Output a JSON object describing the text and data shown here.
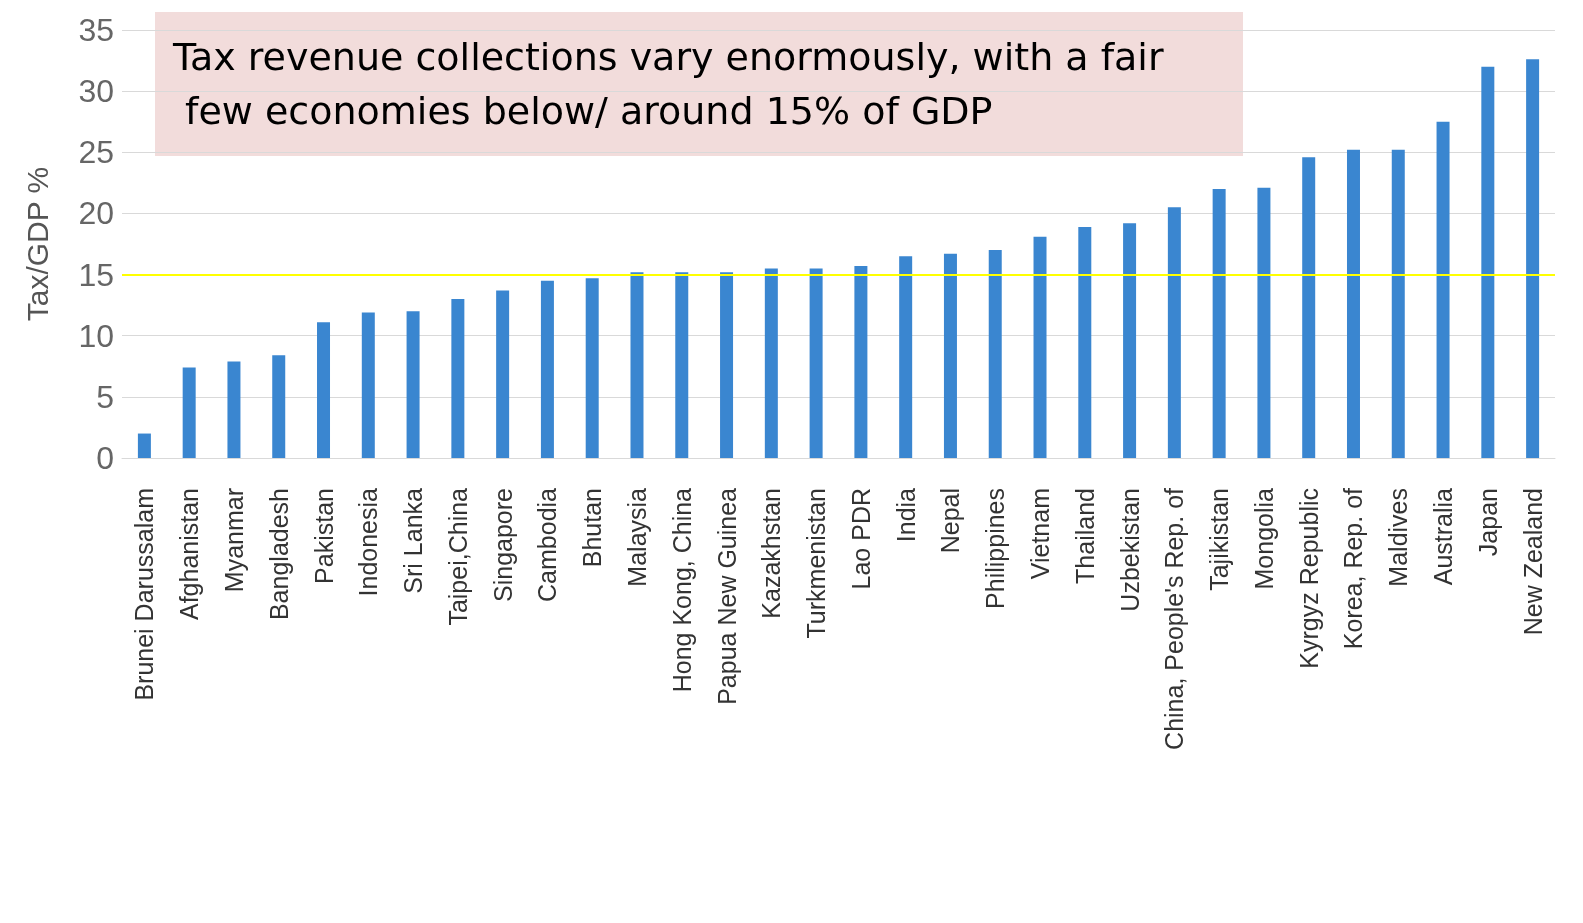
{
  "chart_data": {
    "type": "bar",
    "ylabel": "Tax/GDP %",
    "categories": [
      "Brunei Darussalam",
      "Afghanistan",
      "Myanmar",
      "Bangladesh",
      "Pakistan",
      "Indonesia",
      "Sri Lanka",
      "Taipei,China",
      "Singapore",
      "Cambodia",
      "Bhutan",
      "Malaysia",
      "Hong Kong, China",
      "Papua New Guinea",
      "Kazakhstan",
      "Turkmenistan",
      "Lao PDR",
      "India",
      "Nepal",
      "Philippines",
      "Vietnam",
      "Thailand",
      "Uzbekistan",
      "China, People's Rep. of",
      "Tajikistan",
      "Mongolia",
      "Kyrgyz Republic",
      "Korea, Rep. of",
      "Maldives",
      "Australia",
      "Japan",
      "New Zealand"
    ],
    "values": [
      2.0,
      7.4,
      7.9,
      8.4,
      11.1,
      11.9,
      12.0,
      13.0,
      13.7,
      14.5,
      14.7,
      15.2,
      15.2,
      15.2,
      15.5,
      15.5,
      15.7,
      16.5,
      16.7,
      17.0,
      18.1,
      18.9,
      19.2,
      20.5,
      22.0,
      22.1,
      24.6,
      25.2,
      25.2,
      27.5,
      32.0,
      32.6
    ],
    "color": "#3a86d0",
    "ylim": [
      0,
      35
    ],
    "yticks": [
      0,
      5,
      10,
      15,
      20,
      25,
      30,
      35
    ],
    "grid": "y",
    "ref_lines": [
      {
        "axis": "y",
        "value": 15,
        "label": null,
        "color": "#ffff00"
      }
    ],
    "annotations": [
      "Tax revenue collections vary enormously, with a fair few economies below/ around 15% of GDP"
    ]
  }
}
